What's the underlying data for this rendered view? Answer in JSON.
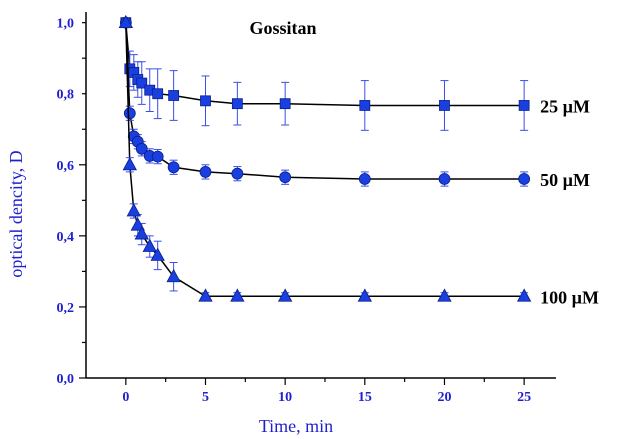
{
  "colors": {
    "axis_text": "#1f1fcf",
    "marker": "#1a3fe0",
    "marker_stroke": "#0b1f8a",
    "line": "#000000",
    "errorbar": "#3a4ee8"
  },
  "chart_data": {
    "type": "line",
    "title": "Gossitan",
    "xlabel": "Time, min",
    "ylabel": "optical dencity, D",
    "xlim": [
      -2.5,
      27
    ],
    "ylim": [
      0,
      1.03
    ],
    "xticks": [
      0,
      5,
      10,
      15,
      20,
      25
    ],
    "xtick_labels": [
      "0",
      "5",
      "10",
      "15",
      "20",
      "25"
    ],
    "yticks": [
      0,
      0.2,
      0.4,
      0.6,
      0.8,
      1.0
    ],
    "ytick_labels": [
      "0,0",
      "0,2",
      "0,4",
      "0,6",
      "0,8",
      "1,0"
    ],
    "grid": false,
    "series": [
      {
        "name": "25 µM",
        "marker": "square",
        "x": [
          0,
          0.25,
          0.5,
          0.75,
          1,
          1.5,
          2,
          3,
          5,
          7,
          10,
          15,
          20,
          25
        ],
        "y": [
          1.0,
          0.87,
          0.86,
          0.84,
          0.83,
          0.81,
          0.8,
          0.795,
          0.78,
          0.772,
          0.772,
          0.767,
          0.767,
          0.767
        ],
        "err": [
          0,
          0.05,
          0.05,
          0.05,
          0.06,
          0.06,
          0.07,
          0.07,
          0.07,
          0.06,
          0.06,
          0.07,
          0.07,
          0.07
        ]
      },
      {
        "name": "50 µM",
        "marker": "circle",
        "x": [
          0,
          0.25,
          0.5,
          0.75,
          1,
          1.5,
          2,
          3,
          5,
          7,
          10,
          15,
          20,
          25
        ],
        "y": [
          1.0,
          0.745,
          0.68,
          0.665,
          0.645,
          0.625,
          0.623,
          0.593,
          0.58,
          0.575,
          0.565,
          0.56,
          0.56,
          0.56
        ],
        "err": [
          0,
          0.02,
          0.02,
          0.02,
          0.02,
          0.02,
          0.02,
          0.02,
          0.02,
          0.02,
          0.02,
          0.02,
          0.02,
          0.02
        ]
      },
      {
        "name": "100 µM",
        "marker": "triangle",
        "x": [
          0,
          0.25,
          0.5,
          0.75,
          1,
          1.5,
          2,
          3,
          5,
          7,
          10,
          15,
          20,
          25
        ],
        "y": [
          1.0,
          0.6,
          0.47,
          0.43,
          0.405,
          0.37,
          0.345,
          0.285,
          0.23,
          0.23,
          0.23,
          0.23,
          0.23,
          0.23
        ],
        "err": [
          0,
          0.02,
          0.02,
          0.03,
          0.03,
          0.03,
          0.04,
          0.04,
          0.01,
          0.01,
          0.01,
          0.01,
          0.01,
          0.01
        ]
      }
    ]
  }
}
